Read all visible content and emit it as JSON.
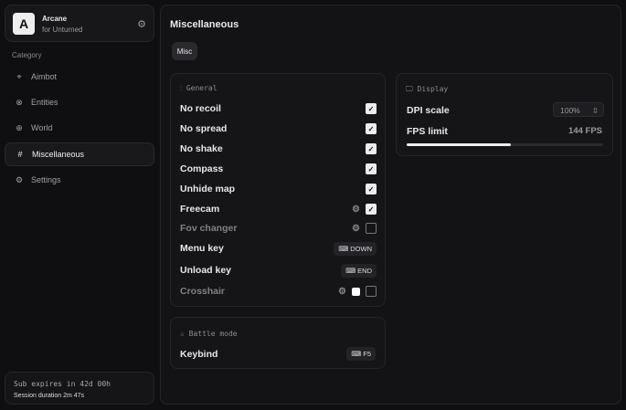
{
  "brand": {
    "name": "Arcane",
    "subtitle": "for Unturned",
    "logo_letter": "A"
  },
  "sidebar": {
    "category_label": "Category",
    "items": [
      {
        "label": "Aimbot",
        "icon": "crosshair-icon",
        "active": false
      },
      {
        "label": "Entities",
        "icon": "entities-icon",
        "active": false
      },
      {
        "label": "World",
        "icon": "globe-icon",
        "active": false
      },
      {
        "label": "Miscellaneous",
        "icon": "grid-icon",
        "active": true
      },
      {
        "label": "Settings",
        "icon": "gear-icon",
        "active": false
      }
    ]
  },
  "subscription": {
    "expires": "Sub expires in 42d 00h",
    "session": "Session duration 2m 47s"
  },
  "main": {
    "title": "Miscellaneous",
    "tabs": [
      {
        "label": "Misc",
        "active": true
      }
    ]
  },
  "general": {
    "title": "General",
    "rows": [
      {
        "label": "No recoil",
        "checked": true
      },
      {
        "label": "No spread",
        "checked": true
      },
      {
        "label": "No shake",
        "checked": true
      },
      {
        "label": "Compass",
        "checked": true
      },
      {
        "label": "Unhide map",
        "checked": true
      },
      {
        "label": "Freecam",
        "checked": true,
        "settings": true
      },
      {
        "label": "Fov changer",
        "checked": false,
        "settings": true
      },
      {
        "label": "Menu key",
        "key": "DOWN"
      },
      {
        "label": "Unload key",
        "key": "END"
      },
      {
        "label": "Crosshair",
        "checked": false,
        "settings": true,
        "color": "#ffffff"
      }
    ]
  },
  "display": {
    "title": "Display",
    "dpi_label": "DPI scale",
    "dpi_value": "100%",
    "fps_label": "FPS limit",
    "fps_value": "144 FPS",
    "fps_slider_fraction": 0.53
  },
  "battle": {
    "title": "Battle mode",
    "keybind_label": "Keybind",
    "keybind_value": "F5"
  }
}
